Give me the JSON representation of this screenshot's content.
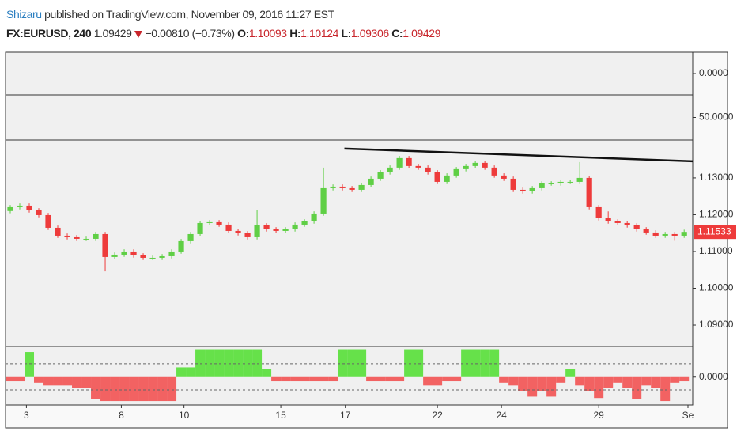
{
  "header": {
    "author": "Shizaru",
    "published": "published on TradingView.com, November 09, 2016 11:27 EST",
    "symbol": "FX:EURUSD, 240",
    "last": "1.09429",
    "change": "−0.00810 (−0.73%)",
    "ohlc": [
      {
        "key": "O:",
        "value": "1.10093"
      },
      {
        "key": "H:",
        "value": "1.10124"
      },
      {
        "key": "L:",
        "value": "1.09306"
      },
      {
        "key": "C:",
        "value": "1.09429"
      }
    ]
  },
  "chart_data": [
    {
      "type": "line",
      "ylim": [
        -1,
        1
      ],
      "yticks": [
        {
          "value": 0,
          "label": "0.0000"
        }
      ]
    },
    {
      "type": "line",
      "ylim": [
        0,
        100
      ],
      "yticks": [
        {
          "value": 50,
          "label": "50.0000"
        }
      ]
    },
    {
      "type": "candlestick",
      "up_color": "#5fcf45",
      "down_color": "#ee3b3b",
      "xlim": [
        -0.5,
        71.9
      ],
      "ylim": [
        1.0842,
        1.1403
      ],
      "yticks": [
        {
          "value": 1.13,
          "label": "1.13000"
        },
        {
          "value": 1.12,
          "label": "1.12000"
        },
        {
          "value": 1.11,
          "label": "1.11000"
        },
        {
          "value": 1.1,
          "label": "1.10000"
        },
        {
          "value": 1.09,
          "label": "1.09000"
        }
      ],
      "open": [
        1.121,
        1.12204,
        1.12247,
        1.12118,
        1.11989,
        1.11645,
        1.1143,
        1.11387,
        1.11344,
        1.11344,
        1.11473,
        1.1085,
        1.10914,
        1.11,
        1.10893,
        1.10828,
        1.10828,
        1.10871,
        1.11,
        1.1128,
        1.11473,
        1.11774,
        1.11796,
        1.11731,
        1.11559,
        1.11495,
        1.11387,
        1.1171,
        1.11602,
        1.11559,
        1.11602,
        1.11731,
        1.11817,
        1.12032,
        1.1272,
        1.12763,
        1.1272,
        1.12677,
        1.12806,
        1.12978,
        1.13151,
        1.1328,
        1.13538,
        1.13323,
        1.1328,
        1.13151,
        1.12892,
        1.13065,
        1.13237,
        1.13323,
        1.13409,
        1.1328,
        1.13065,
        1.12978,
        1.12677,
        1.12634,
        1.1272,
        1.12849,
        1.12849,
        1.12892,
        1.12892,
        1.13,
        1.12204,
        1.11903,
        1.11817,
        1.11774,
        1.1171,
        1.11602,
        1.11516,
        1.1143,
        1.11473,
        1.1143
      ],
      "high": [
        1.12264,
        1.12307,
        1.12307,
        1.12178,
        1.12049,
        1.11705,
        1.1149,
        1.11447,
        1.11404,
        1.11533,
        1.11533,
        1.10974,
        1.1106,
        1.1106,
        1.10953,
        1.10888,
        1.10931,
        1.1106,
        1.1134,
        1.11533,
        1.11834,
        1.11856,
        1.11856,
        1.11791,
        1.11619,
        1.11555,
        1.1213,
        1.1177,
        1.11662,
        1.11662,
        1.11791,
        1.11877,
        1.12092,
        1.1328,
        1.12823,
        1.12823,
        1.1278,
        1.12866,
        1.13038,
        1.13211,
        1.1334,
        1.13598,
        1.13598,
        1.13383,
        1.1334,
        1.13211,
        1.13125,
        1.13297,
        1.13383,
        1.13469,
        1.13469,
        1.1334,
        1.13125,
        1.13038,
        1.12737,
        1.1278,
        1.12909,
        1.12909,
        1.12952,
        1.12952,
        1.1343,
        1.1306,
        1.12264,
        1.1209,
        1.11877,
        1.11834,
        1.1177,
        1.11662,
        1.11576,
        1.11533,
        1.11533,
        1.11593
      ],
      "low": [
        1.1204,
        1.12144,
        1.12058,
        1.11929,
        1.11585,
        1.1137,
        1.11327,
        1.11284,
        1.11284,
        1.11284,
        1.1046,
        1.1079,
        1.10854,
        1.10833,
        1.10768,
        1.10768,
        1.10768,
        1.10811,
        1.1094,
        1.1122,
        1.11413,
        1.11714,
        1.11671,
        1.11499,
        1.11435,
        1.11327,
        1.11327,
        1.11542,
        1.11499,
        1.11499,
        1.11542,
        1.11671,
        1.11757,
        1.11972,
        1.1266,
        1.1266,
        1.12617,
        1.12617,
        1.12746,
        1.12918,
        1.13091,
        1.1322,
        1.13263,
        1.1322,
        1.13091,
        1.12832,
        1.12832,
        1.13005,
        1.13177,
        1.13263,
        1.1322,
        1.13005,
        1.12918,
        1.12617,
        1.12574,
        1.12574,
        1.1266,
        1.12789,
        1.12789,
        1.12832,
        1.12832,
        1.12144,
        1.11843,
        1.11757,
        1.11714,
        1.1165,
        1.11542,
        1.11456,
        1.1137,
        1.1137,
        1.1129,
        1.1137
      ],
      "close": [
        1.12204,
        1.12247,
        1.12118,
        1.11989,
        1.11645,
        1.1143,
        1.11387,
        1.11344,
        1.11344,
        1.11473,
        1.1085,
        1.10914,
        1.11,
        1.10893,
        1.10828,
        1.10828,
        1.10871,
        1.11,
        1.1128,
        1.11473,
        1.11774,
        1.11796,
        1.11731,
        1.11559,
        1.11495,
        1.11387,
        1.1171,
        1.11602,
        1.11559,
        1.11602,
        1.11731,
        1.11817,
        1.12032,
        1.1272,
        1.12763,
        1.1272,
        1.12677,
        1.12806,
        1.12978,
        1.13151,
        1.1328,
        1.13538,
        1.13323,
        1.1328,
        1.13151,
        1.12892,
        1.13065,
        1.13237,
        1.13323,
        1.13409,
        1.1328,
        1.13065,
        1.12978,
        1.12677,
        1.12634,
        1.1272,
        1.12849,
        1.12849,
        1.12892,
        1.12892,
        1.13,
        1.12204,
        1.11903,
        1.11817,
        1.11774,
        1.1171,
        1.11602,
        1.11516,
        1.1143,
        1.11473,
        1.1143,
        1.11533
      ],
      "trendline": {
        "x": [
          35.2,
          71.9
        ],
        "y": [
          1.13796,
          1.13452
        ],
        "color": "#111111"
      }
    },
    {
      "type": "area",
      "pos_color": "#66e14a",
      "neg_color": "#f26262",
      "xlim": [
        -0.5,
        71.9
      ],
      "ylim": [
        -1,
        1.1
      ],
      "yticks": [
        {
          "value": 0,
          "label": "0.0000"
        }
      ],
      "levels": [
        0.48,
        -0.46
      ],
      "values": [
        -0.15,
        -0.15,
        0.9,
        -0.2,
        -0.3,
        -0.3,
        -0.3,
        -0.4,
        -0.4,
        -0.8,
        -0.86,
        -0.86,
        -0.86,
        -0.86,
        -0.86,
        -0.86,
        -0.86,
        -0.86,
        0.35,
        0.35,
        1,
        1,
        1,
        1,
        1,
        1,
        1,
        0.3,
        -0.15,
        -0.15,
        -0.15,
        -0.15,
        -0.15,
        -0.15,
        -0.15,
        1,
        1,
        1,
        -0.15,
        -0.15,
        -0.15,
        -0.15,
        1,
        1,
        -0.3,
        -0.3,
        -0.15,
        -0.15,
        1,
        1,
        1,
        1,
        -0.2,
        -0.3,
        -0.5,
        -0.7,
        -0.5,
        -0.7,
        -0.2,
        0.3,
        -0.3,
        -0.5,
        -0.75,
        -0.4,
        -0.2,
        -0.4,
        -0.8,
        -0.3,
        -0.4,
        -0.86,
        -0.2,
        -0.15
      ],
      "xticks": [
        {
          "value": 1.7,
          "label": "3"
        },
        {
          "value": 11.7,
          "label": "8"
        },
        {
          "value": 18.3,
          "label": "10"
        },
        {
          "value": 28.5,
          "label": "15"
        },
        {
          "value": 35.3,
          "label": "17"
        },
        {
          "value": 45,
          "label": "22"
        },
        {
          "value": 51.75,
          "label": "24"
        },
        {
          "value": 62,
          "label": "29"
        },
        {
          "value": 71.4,
          "label": "Se"
        }
      ]
    }
  ]
}
